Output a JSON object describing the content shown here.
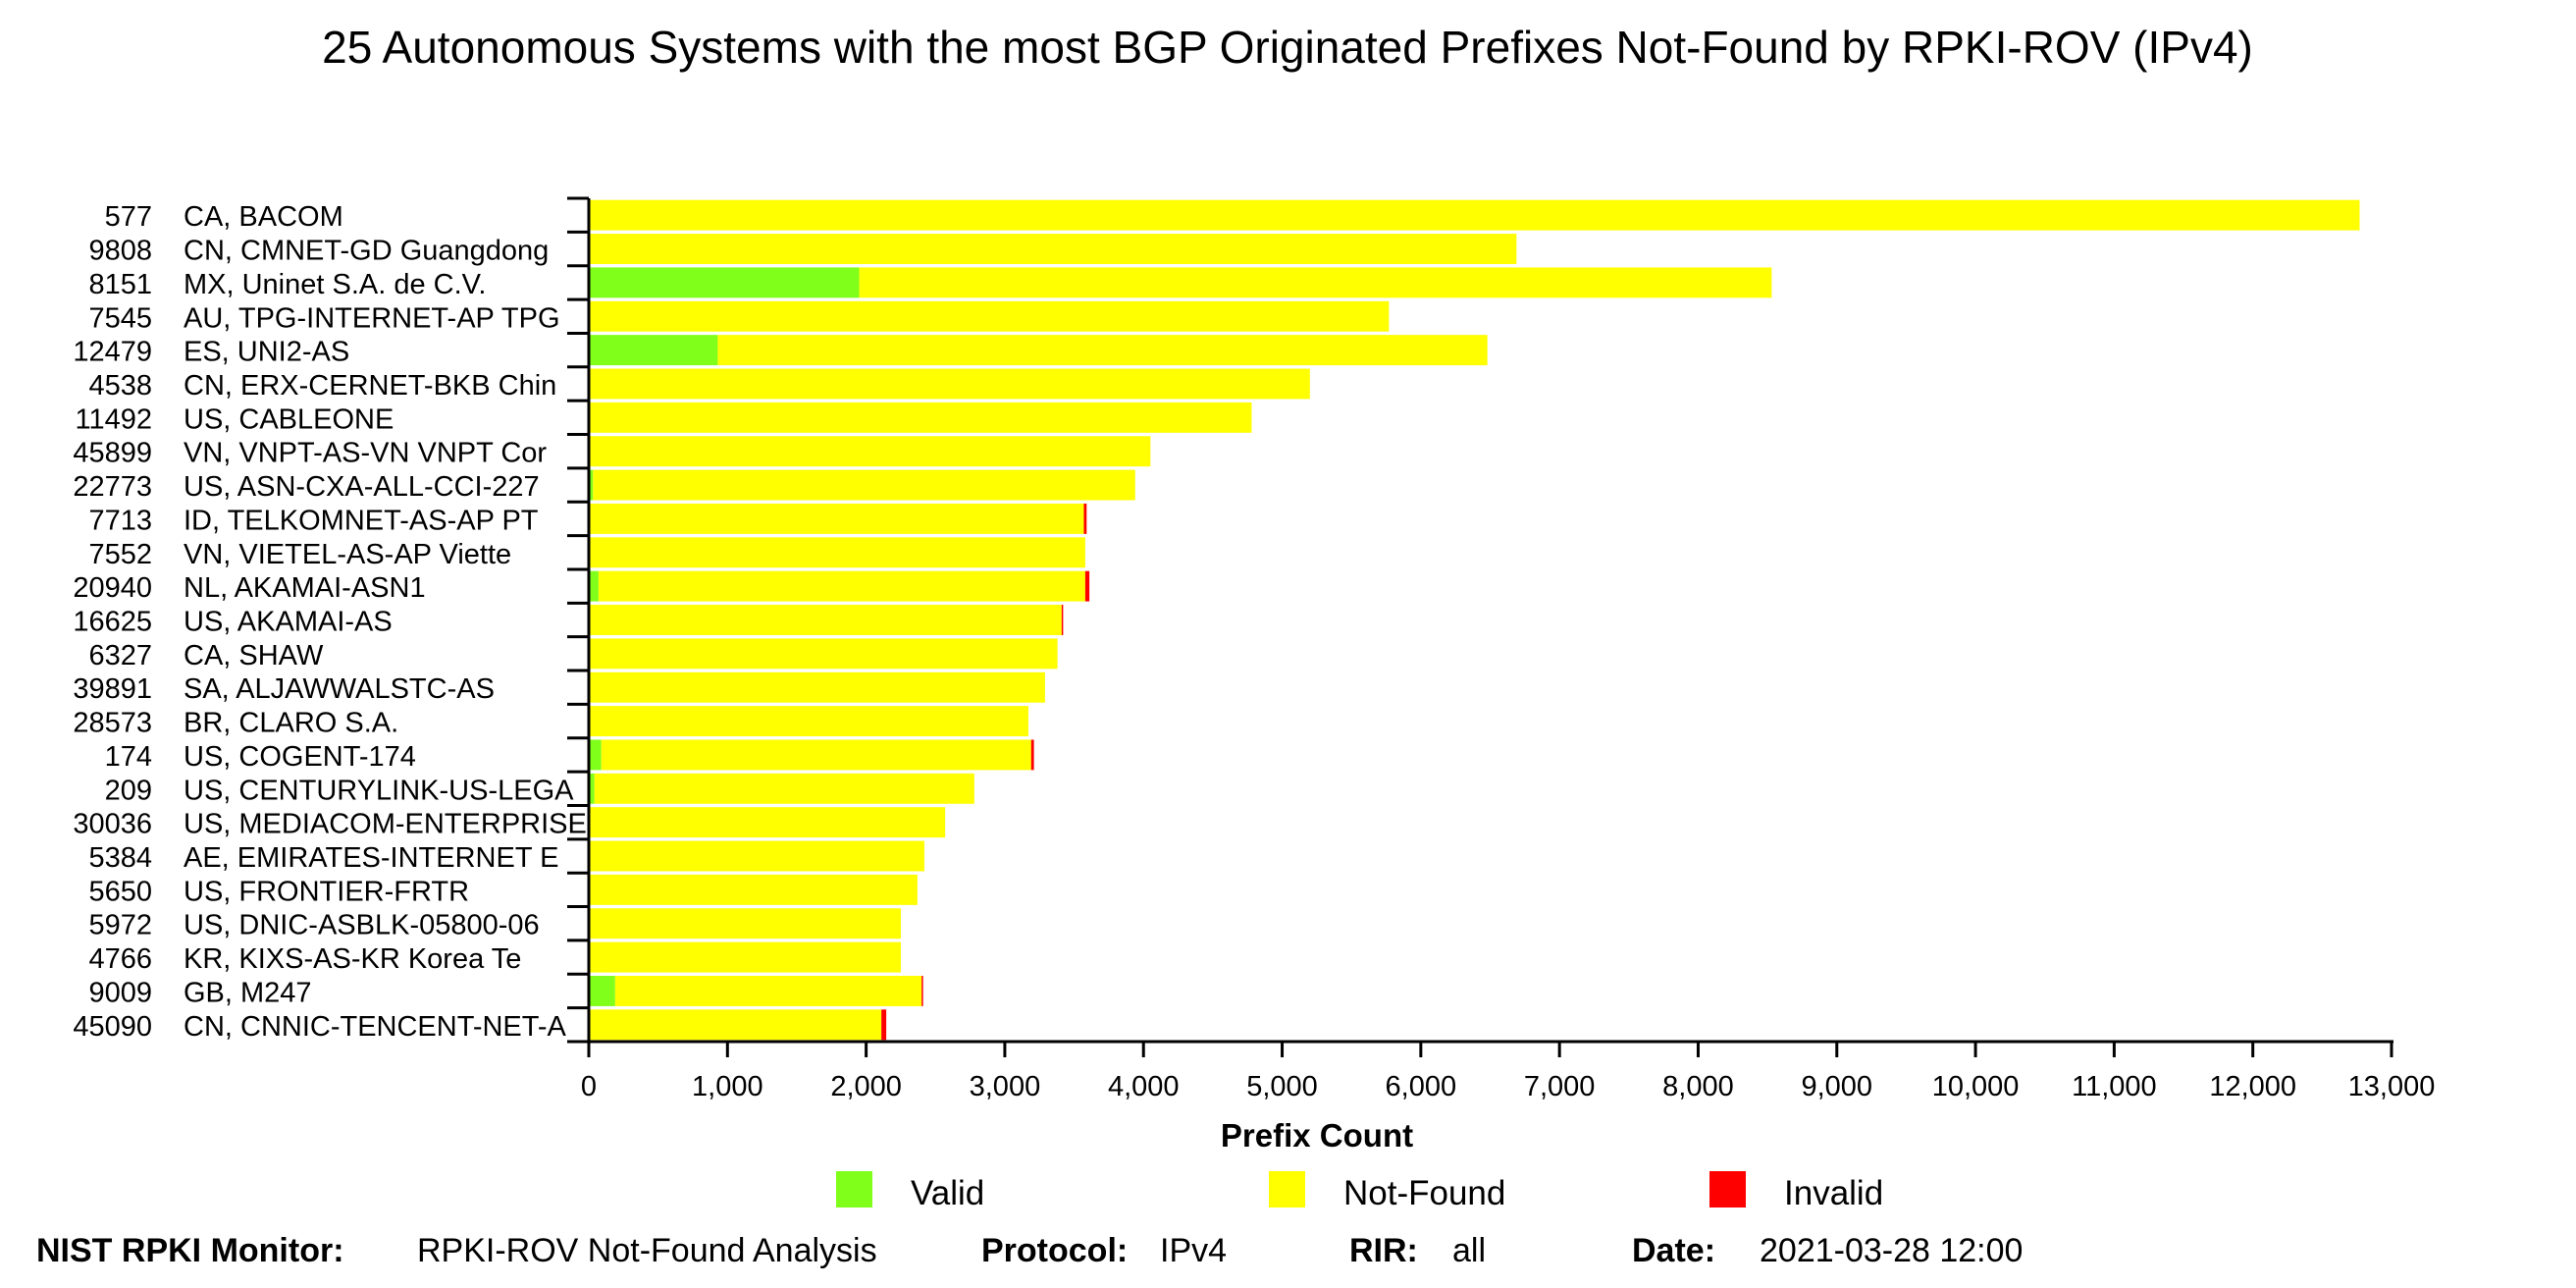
{
  "chart_data": {
    "type": "bar",
    "orientation": "horizontal",
    "stacked": true,
    "title": "25 Autonomous Systems with the most BGP Originated Prefixes Not-Found by RPKI-ROV (IPv4)",
    "xlabel": "Prefix Count",
    "xlim": [
      0,
      13000
    ],
    "xticks": [
      "0",
      "1,000",
      "2,000",
      "3,000",
      "4,000",
      "5,000",
      "6,000",
      "7,000",
      "8,000",
      "9,000",
      "10,000",
      "11,000",
      "12,000",
      "13,000"
    ],
    "categories": [
      {
        "asn": "577",
        "name": "CA, BACOM"
      },
      {
        "asn": "9808",
        "name": "CN, CMNET-GD Guangdong"
      },
      {
        "asn": "8151",
        "name": "MX, Uninet S.A. de C.V."
      },
      {
        "asn": "7545",
        "name": "AU, TPG-INTERNET-AP TPG"
      },
      {
        "asn": "12479",
        "name": "ES, UNI2-AS"
      },
      {
        "asn": "4538",
        "name": "CN, ERX-CERNET-BKB Chin"
      },
      {
        "asn": "11492",
        "name": "US, CABLEONE"
      },
      {
        "asn": "45899",
        "name": "VN, VNPT-AS-VN VNPT Cor"
      },
      {
        "asn": "22773",
        "name": "US, ASN-CXA-ALL-CCI-227"
      },
      {
        "asn": "7713",
        "name": "ID, TELKOMNET-AS-AP PT"
      },
      {
        "asn": "7552",
        "name": "VN, VIETEL-AS-AP Viette"
      },
      {
        "asn": "20940",
        "name": "NL, AKAMAI-ASN1"
      },
      {
        "asn": "16625",
        "name": "US, AKAMAI-AS"
      },
      {
        "asn": "6327",
        "name": "CA, SHAW"
      },
      {
        "asn": "39891",
        "name": "SA, ALJAWWALSTC-AS"
      },
      {
        "asn": "28573",
        "name": "BR, CLARO S.A."
      },
      {
        "asn": "174",
        "name": "US, COGENT-174"
      },
      {
        "asn": "209",
        "name": "US, CENTURYLINK-US-LEGA"
      },
      {
        "asn": "30036",
        "name": "US, MEDIACOM-ENTERPRISE"
      },
      {
        "asn": "5384",
        "name": "AE, EMIRATES-INTERNET E"
      },
      {
        "asn": "5650",
        "name": "US, FRONTIER-FRTR"
      },
      {
        "asn": "5972",
        "name": "US, DNIC-ASBLK-05800-06"
      },
      {
        "asn": "4766",
        "name": "KR, KIXS-AS-KR Korea Te"
      },
      {
        "asn": "9009",
        "name": "GB, M247"
      },
      {
        "asn": "45090",
        "name": "CN, CNNIC-TENCENT-NET-A"
      }
    ],
    "series": [
      {
        "name": "Valid",
        "color": "#80ff1a",
        "values": [
          0,
          0,
          1950,
          0,
          930,
          0,
          0,
          0,
          30,
          0,
          0,
          70,
          0,
          0,
          0,
          0,
          90,
          40,
          0,
          0,
          0,
          0,
          0,
          190,
          0
        ]
      },
      {
        "name": "Not-Found",
        "color": "#ffff00",
        "values": [
          12770,
          6690,
          6580,
          5770,
          5550,
          5200,
          4780,
          4050,
          3910,
          3570,
          3580,
          3510,
          3410,
          3380,
          3290,
          3170,
          3100,
          2740,
          2570,
          2420,
          2370,
          2250,
          2250,
          2210,
          2110
        ]
      },
      {
        "name": "Invalid",
        "color": "#ff0000",
        "values": [
          0,
          0,
          0,
          0,
          0,
          0,
          0,
          0,
          0,
          20,
          0,
          30,
          10,
          0,
          0,
          0,
          20,
          0,
          0,
          0,
          0,
          0,
          0,
          10,
          35
        ]
      }
    ],
    "legend": {
      "position": "bottom"
    },
    "grid": false
  },
  "footer": {
    "monitor_label": "NIST RPKI Monitor:",
    "monitor_value": "RPKI-ROV Not-Found Analysis",
    "protocol_label": "Protocol:",
    "protocol_value": "IPv4",
    "rir_label": "RIR:",
    "rir_value": "all",
    "date_label": "Date:",
    "date_value": "2021-03-28 12:00"
  }
}
